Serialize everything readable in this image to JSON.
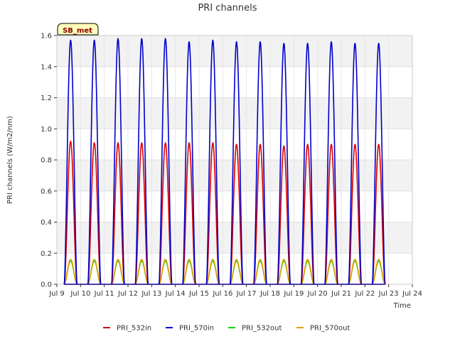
{
  "chart_data": {
    "type": "line",
    "title": "PRI channels",
    "xlabel": "Time",
    "ylabel": "PRI channels (W/m2/nm)",
    "site_badge": "SB_met",
    "xlim": [
      9,
      24
    ],
    "ylim": [
      0,
      1.6
    ],
    "x_ticks": [
      9,
      10,
      11,
      12,
      13,
      14,
      15,
      16,
      17,
      18,
      19,
      20,
      21,
      22,
      23,
      24
    ],
    "x_tick_labels": [
      "Jul 9",
      "Jul 10",
      "Jul 11",
      "Jul 12",
      "Jul 13",
      "Jul 14",
      "Jul 15",
      "Jul 16",
      "Jul 17",
      "Jul 18",
      "Jul 19",
      "Jul 20",
      "Jul 21",
      "Jul 22",
      "Jul 23",
      "Jul 24"
    ],
    "y_ticks": [
      0.0,
      0.2,
      0.4,
      0.6,
      0.8,
      1.0,
      1.2,
      1.4,
      1.6
    ],
    "y_tick_labels": [
      "0.0",
      "0.2",
      "0.4",
      "0.6",
      "0.8",
      "1.0",
      "1.2",
      "1.4",
      "1.6"
    ],
    "grid": true,
    "legend_position": "bottom",
    "days": [
      9,
      10,
      11,
      12,
      13,
      14,
      15,
      16,
      17,
      18,
      19,
      20,
      21,
      22
    ],
    "series": [
      {
        "name": "PRI_532in",
        "color": "#dd0000",
        "peaks": [
          0.92,
          0.91,
          0.91,
          0.91,
          0.91,
          0.91,
          0.91,
          0.9,
          0.9,
          0.89,
          0.9,
          0.9,
          0.9,
          0.9
        ]
      },
      {
        "name": "PRI_570in",
        "color": "#0000cc",
        "peaks": [
          1.57,
          1.57,
          1.58,
          1.58,
          1.58,
          1.56,
          1.57,
          1.56,
          1.56,
          1.55,
          1.55,
          1.56,
          1.55,
          1.55
        ]
      },
      {
        "name": "PRI_532out",
        "color": "#00dd00",
        "peaks": [
          0.15,
          0.15,
          0.15,
          0.15,
          0.15,
          0.15,
          0.15,
          0.15,
          0.15,
          0.15,
          0.15,
          0.15,
          0.15,
          0.15
        ]
      },
      {
        "name": "PRI_570out",
        "color": "#e0a000",
        "peaks": [
          0.16,
          0.16,
          0.16,
          0.16,
          0.16,
          0.16,
          0.16,
          0.16,
          0.16,
          0.16,
          0.16,
          0.16,
          0.16,
          0.16
        ]
      }
    ]
  }
}
